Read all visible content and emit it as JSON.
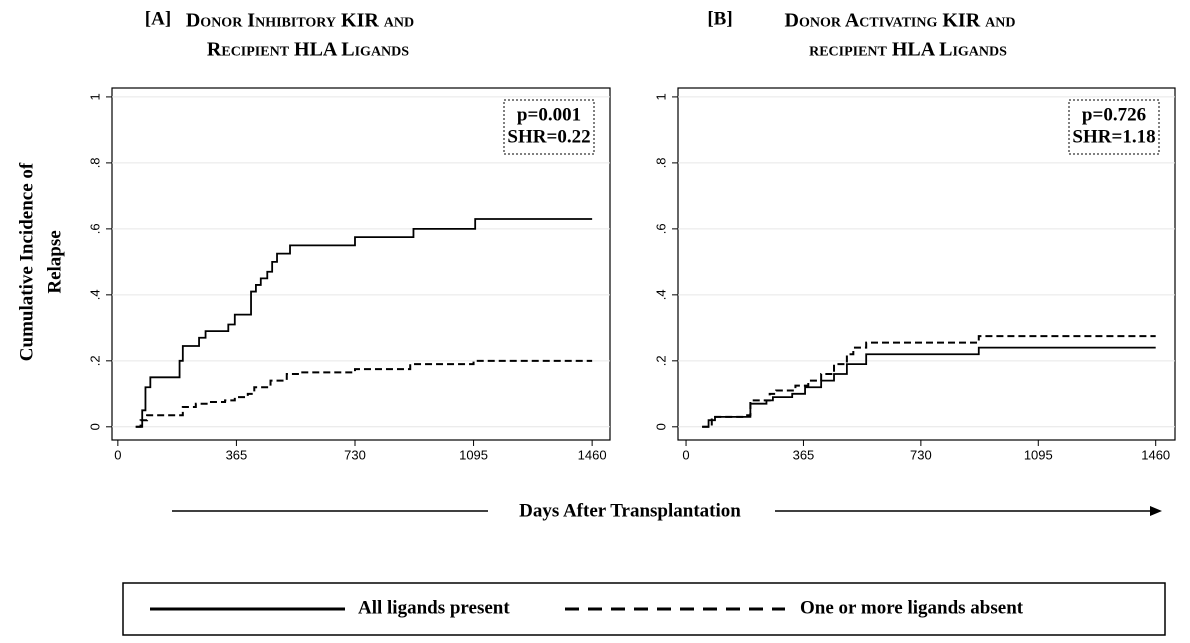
{
  "shared": {
    "y_label_lines": [
      "Cumulative Incidence of",
      "Relapse"
    ],
    "x_label": "Days After Transplantation"
  },
  "chart_data": [
    {
      "type": "step",
      "panel": "[A]",
      "title_lines": [
        "Donor Inhibitory KIR and",
        "Recipient HLA Ligands"
      ],
      "annotation": [
        "p=0.001",
        "SHR=0.22"
      ],
      "xlim": [
        -18,
        1515
      ],
      "ylim": [
        -0.04,
        1.027
      ],
      "xticks": [
        0,
        365,
        730,
        1095,
        1460
      ],
      "yticks": [
        0,
        {
          "value": 0.2,
          "label": ".2"
        },
        {
          "value": 0.4,
          "label": ".4"
        },
        {
          "value": 0.6,
          "label": ".6"
        },
        {
          "value": 0.8,
          "label": ".8"
        },
        1
      ],
      "grid": true,
      "series": [
        {
          "name": "All ligands present",
          "color": "#000000",
          "dashed": false,
          "x": [
            55,
            75,
            85,
            100,
            190,
            200,
            250,
            270,
            340,
            360,
            410,
            425,
            440,
            460,
            475,
            490,
            530,
            730,
            910,
            1100,
            1460
          ],
          "values": [
            0,
            0.05,
            0.12,
            0.15,
            0.2,
            0.245,
            0.27,
            0.29,
            0.31,
            0.34,
            0.41,
            0.43,
            0.45,
            0.47,
            0.5,
            0.525,
            0.55,
            0.575,
            0.6,
            0.63,
            0.63
          ]
        },
        {
          "name": "One or more ligands absent",
          "color": "#000000",
          "dashed": true,
          "x": [
            55,
            70,
            90,
            200,
            240,
            280,
            330,
            360,
            400,
            420,
            470,
            520,
            560,
            730,
            900,
            1095,
            1460
          ],
          "values": [
            0,
            0.02,
            0.035,
            0.06,
            0.07,
            0.075,
            0.08,
            0.09,
            0.1,
            0.12,
            0.14,
            0.16,
            0.165,
            0.175,
            0.19,
            0.2,
            0.2
          ]
        }
      ]
    },
    {
      "type": "step",
      "panel": "[B]",
      "title_lines": [
        "Donor Activating KIR and",
        "recipient HLA Ligands"
      ],
      "annotation": [
        "p=0.726",
        "SHR=1.18"
      ],
      "xlim": [
        -25,
        1520
      ],
      "ylim": [
        -0.04,
        1.027
      ],
      "xticks": [
        0,
        365,
        730,
        1095,
        1460
      ],
      "yticks": [
        0,
        {
          "value": 0.2,
          "label": ".2"
        },
        {
          "value": 0.4,
          "label": ".4"
        },
        {
          "value": 0.6,
          "label": ".6"
        },
        {
          "value": 0.8,
          "label": ".8"
        },
        1
      ],
      "grid": true,
      "series": [
        {
          "color": "#000000",
          "dashed": false,
          "x": [
            50,
            70,
            90,
            200,
            250,
            270,
            330,
            370,
            420,
            460,
            500,
            560,
            910,
            1460
          ],
          "values": [
            0,
            0.02,
            0.03,
            0.07,
            0.08,
            0.09,
            0.1,
            0.12,
            0.14,
            0.16,
            0.19,
            0.22,
            0.24,
            0.24
          ]
        },
        {
          "color": "#000000",
          "dashed": true,
          "x": [
            50,
            80,
            190,
            200,
            260,
            280,
            340,
            380,
            420,
            460,
            500,
            520,
            560,
            910,
            1460
          ],
          "values": [
            0,
            0.03,
            0.035,
            0.08,
            0.1,
            0.11,
            0.125,
            0.14,
            0.16,
            0.19,
            0.22,
            0.24,
            0.255,
            0.275,
            0.275
          ]
        }
      ]
    }
  ]
}
